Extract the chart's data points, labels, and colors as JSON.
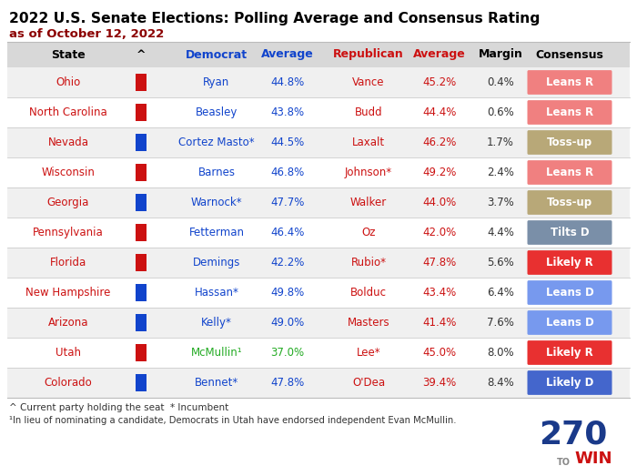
{
  "title1": "2022 U.S. Senate Elections: Polling Average and Consensus Rating",
  "title2": "as of October 12, 2022",
  "rows": [
    {
      "state": "Ohio",
      "party_color": "#cc1111",
      "dem": "Ryan",
      "dem_avg": "44.8%",
      "rep": "Vance",
      "rep_avg": "45.2%",
      "margin": "0.4%",
      "consensus": "Leans R",
      "cons_color": "#f08080"
    },
    {
      "state": "North Carolina",
      "party_color": "#cc1111",
      "dem": "Beasley",
      "dem_avg": "43.8%",
      "rep": "Budd",
      "rep_avg": "44.4%",
      "margin": "0.6%",
      "consensus": "Leans R",
      "cons_color": "#f08080"
    },
    {
      "state": "Nevada",
      "party_color": "#1144cc",
      "dem": "Cortez Masto*",
      "dem_avg": "44.5%",
      "rep": "Laxalt",
      "rep_avg": "46.2%",
      "margin": "1.7%",
      "consensus": "Toss-up",
      "cons_color": "#b8a878"
    },
    {
      "state": "Wisconsin",
      "party_color": "#cc1111",
      "dem": "Barnes",
      "dem_avg": "46.8%",
      "rep": "Johnson*",
      "rep_avg": "49.2%",
      "margin": "2.4%",
      "consensus": "Leans R",
      "cons_color": "#f08080"
    },
    {
      "state": "Georgia",
      "party_color": "#1144cc",
      "dem": "Warnock*",
      "dem_avg": "47.7%",
      "rep": "Walker",
      "rep_avg": "44.0%",
      "margin": "3.7%",
      "consensus": "Toss-up",
      "cons_color": "#b8a878"
    },
    {
      "state": "Pennsylvania",
      "party_color": "#cc1111",
      "dem": "Fetterman",
      "dem_avg": "46.4%",
      "rep": "Oz",
      "rep_avg": "42.0%",
      "margin": "4.4%",
      "consensus": "Tilts D",
      "cons_color": "#7a8fa8"
    },
    {
      "state": "Florida",
      "party_color": "#cc1111",
      "dem": "Demings",
      "dem_avg": "42.2%",
      "rep": "Rubio*",
      "rep_avg": "47.8%",
      "margin": "5.6%",
      "consensus": "Likely R",
      "cons_color": "#e83030"
    },
    {
      "state": "New Hampshire",
      "party_color": "#1144cc",
      "dem": "Hassan*",
      "dem_avg": "49.8%",
      "rep": "Bolduc",
      "rep_avg": "43.4%",
      "margin": "6.4%",
      "consensus": "Leans D",
      "cons_color": "#7799ee"
    },
    {
      "state": "Arizona",
      "party_color": "#1144cc",
      "dem": "Kelly*",
      "dem_avg": "49.0%",
      "rep": "Masters",
      "rep_avg": "41.4%",
      "margin": "7.6%",
      "consensus": "Leans D",
      "cons_color": "#7799ee"
    },
    {
      "state": "Utah",
      "party_color": "#cc1111",
      "dem": "McMullin¹",
      "dem_avg": "37.0%",
      "rep": "Lee*",
      "rep_avg": "45.0%",
      "margin": "8.0%",
      "consensus": "Likely R",
      "cons_color": "#e83030"
    },
    {
      "state": "Colorado",
      "party_color": "#1144cc",
      "dem": "Bennet*",
      "dem_avg": "47.8%",
      "rep": "O'Dea",
      "rep_avg": "39.4%",
      "margin": "8.4%",
      "consensus": "Likely D",
      "cons_color": "#4466cc"
    }
  ],
  "dem_color": "#1144cc",
  "rep_color": "#cc1111",
  "utah_dem_color": "#22aa22",
  "footnote1": "^ Current party holding the seat  * Incumbent",
  "footnote2": "¹In lieu of nominating a candidate, Democrats in Utah have endorsed independent Evan McMullin.",
  "bg_color": "#ffffff",
  "header_bg": "#d8d8d8",
  "row_bg_even": "#f0f0f0",
  "row_bg_odd": "#ffffff",
  "title1_color": "#000000",
  "title2_color": "#8b0000",
  "logo_color": "#1a3a8a",
  "logo_to_color": "#888888",
  "logo_win_color": "#cc1111"
}
